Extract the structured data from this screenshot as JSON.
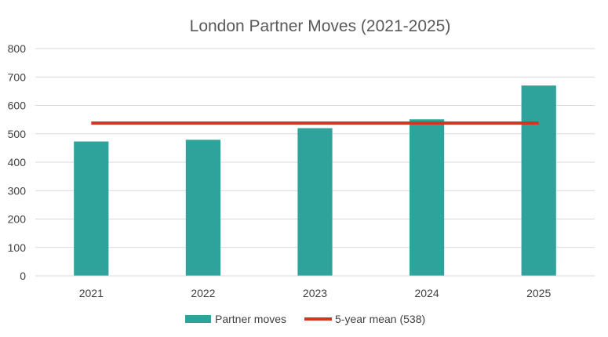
{
  "chart_data": {
    "type": "bar",
    "title": "London Partner Moves (2021-2025)",
    "xlabel": "",
    "ylabel": "",
    "categories": [
      "2021",
      "2022",
      "2023",
      "2024",
      "2025"
    ],
    "series": [
      {
        "name": "Partner moves",
        "type": "bar",
        "color": "#2EA39C",
        "values": [
          473,
          479,
          520,
          551,
          670
        ]
      },
      {
        "name": "5-year mean (538)",
        "type": "line",
        "color": "#D03525",
        "values": [
          538,
          538,
          538,
          538,
          538
        ]
      }
    ],
    "ylim": [
      0,
      800
    ],
    "yticks": [
      0,
      100,
      200,
      300,
      400,
      500,
      600,
      700,
      800
    ],
    "grid": true,
    "legend": "bottom",
    "colors": {
      "gridline": "#D9D9D9",
      "axis": "#D9D9D9",
      "text": "#404040",
      "title": "#595959"
    }
  }
}
